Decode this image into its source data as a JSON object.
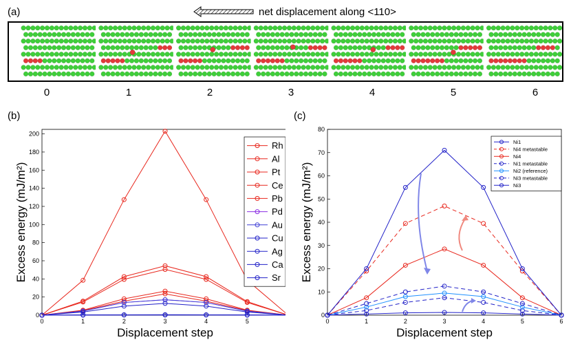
{
  "panel_a": {
    "label": "(a)",
    "title": "net displacement along <110>",
    "steps": [
      "0",
      "1",
      "2",
      "3",
      "4",
      "5",
      "6"
    ],
    "colors": {
      "atom_green": "#3fcf3a",
      "atom_red": "#e33a3a",
      "border": "#000000"
    }
  },
  "panel_b": {
    "label": "(b)"
  },
  "panel_c": {
    "label": "(c)"
  },
  "chart_data": [
    {
      "id": "b",
      "type": "line",
      "xlabel": "Displacement step",
      "ylabel": "Excess energy (mJ/m²)",
      "xlim": [
        0,
        6
      ],
      "ylim": [
        0,
        205
      ],
      "xticks": [
        0,
        1,
        2,
        3,
        4,
        5,
        6
      ],
      "yticks": [
        0,
        20,
        40,
        60,
        80,
        100,
        120,
        140,
        160,
        180,
        200
      ],
      "x": [
        0,
        1,
        2,
        3,
        4,
        5,
        6
      ],
      "legend_position": "top-right",
      "series": [
        {
          "name": "Rh",
          "color": "#e8261c",
          "dashed": false,
          "values": [
            0,
            38.5,
            127.5,
            203,
            127.5,
            38.5,
            0
          ]
        },
        {
          "name": "Al",
          "color": "#e8261c",
          "dashed": false,
          "values": [
            0,
            15.5,
            42.5,
            54.5,
            42.5,
            15,
            0
          ]
        },
        {
          "name": "Pt",
          "color": "#e8261c",
          "dashed": false,
          "values": [
            0,
            14.5,
            39.5,
            50.5,
            39.5,
            14,
            0
          ]
        },
        {
          "name": "Ce",
          "color": "#e8261c",
          "dashed": false,
          "values": [
            0,
            5.5,
            18,
            26.5,
            18,
            5.5,
            0
          ]
        },
        {
          "name": "Pb",
          "color": "#e8261c",
          "dashed": false,
          "values": [
            0,
            5,
            15.5,
            23.5,
            15.5,
            5,
            0
          ]
        },
        {
          "name": "Pd",
          "color": "#8a2be2",
          "dashed": false,
          "values": [
            0,
            4.5,
            14,
            17,
            14,
            4.5,
            0
          ]
        },
        {
          "name": "Au",
          "color": "#3d3dd6",
          "dashed": false,
          "values": [
            0,
            4.5,
            14,
            17,
            14,
            4.5,
            0
          ]
        },
        {
          "name": "Cu",
          "color": "#2020c8",
          "dashed": false,
          "values": [
            0,
            3.5,
            10,
            13,
            10,
            3.5,
            0
          ]
        },
        {
          "name": "Ag",
          "color": "#2020c8",
          "dashed": false,
          "values": [
            0,
            0.3,
            0.4,
            0.5,
            0.4,
            0.3,
            0
          ]
        },
        {
          "name": "Ca",
          "color": "#2020c8",
          "dashed": false,
          "values": [
            0,
            0.2,
            0.3,
            0.3,
            0.3,
            0.2,
            0
          ]
        },
        {
          "name": "Sr",
          "color": "#2020c8",
          "dashed": false,
          "values": [
            0,
            0.1,
            0.2,
            0.2,
            0.2,
            0.1,
            0
          ]
        }
      ]
    },
    {
      "id": "c",
      "type": "line",
      "xlabel": "Displacement step",
      "ylabel": "Excess energy (mJ/m²)",
      "xlim": [
        0,
        6
      ],
      "ylim": [
        0,
        80
      ],
      "xticks": [
        0,
        1,
        2,
        3,
        4,
        5,
        6
      ],
      "yticks": [
        0,
        10,
        20,
        30,
        40,
        50,
        60,
        70,
        80
      ],
      "x": [
        0,
        1,
        2,
        3,
        4,
        5,
        6
      ],
      "legend_position": "top-right",
      "series": [
        {
          "name": "Ni1",
          "color": "#2020c8",
          "dashed": false,
          "values": [
            0,
            0.5,
            1,
            1.2,
            1,
            0.5,
            0
          ]
        },
        {
          "name": "Ni4 metastable",
          "color": "#e8261c",
          "dashed": true,
          "values": [
            0,
            19,
            39.5,
            47,
            39.5,
            19,
            0
          ]
        },
        {
          "name": "Ni4",
          "color": "#e8261c",
          "dashed": false,
          "values": [
            0,
            7.5,
            21.5,
            28.5,
            21.5,
            7.5,
            0
          ]
        },
        {
          "name": "Ni1 metastable",
          "color": "#2020c8",
          "dashed": true,
          "values": [
            0,
            2,
            5.5,
            7.5,
            5.5,
            2,
            0
          ]
        },
        {
          "name": "Ni2 (reference)",
          "color": "#1e90ff",
          "dashed": false,
          "values": [
            0,
            3.5,
            8,
            9.5,
            8,
            3.5,
            0
          ]
        },
        {
          "name": "Ni3 metastable",
          "color": "#2020c8",
          "dashed": true,
          "values": [
            0,
            5,
            10,
            12.5,
            10,
            5,
            0
          ]
        },
        {
          "name": "Ni3",
          "color": "#2020c8",
          "dashed": false,
          "values": [
            0,
            20,
            55,
            71,
            55,
            20,
            0
          ]
        }
      ]
    }
  ]
}
